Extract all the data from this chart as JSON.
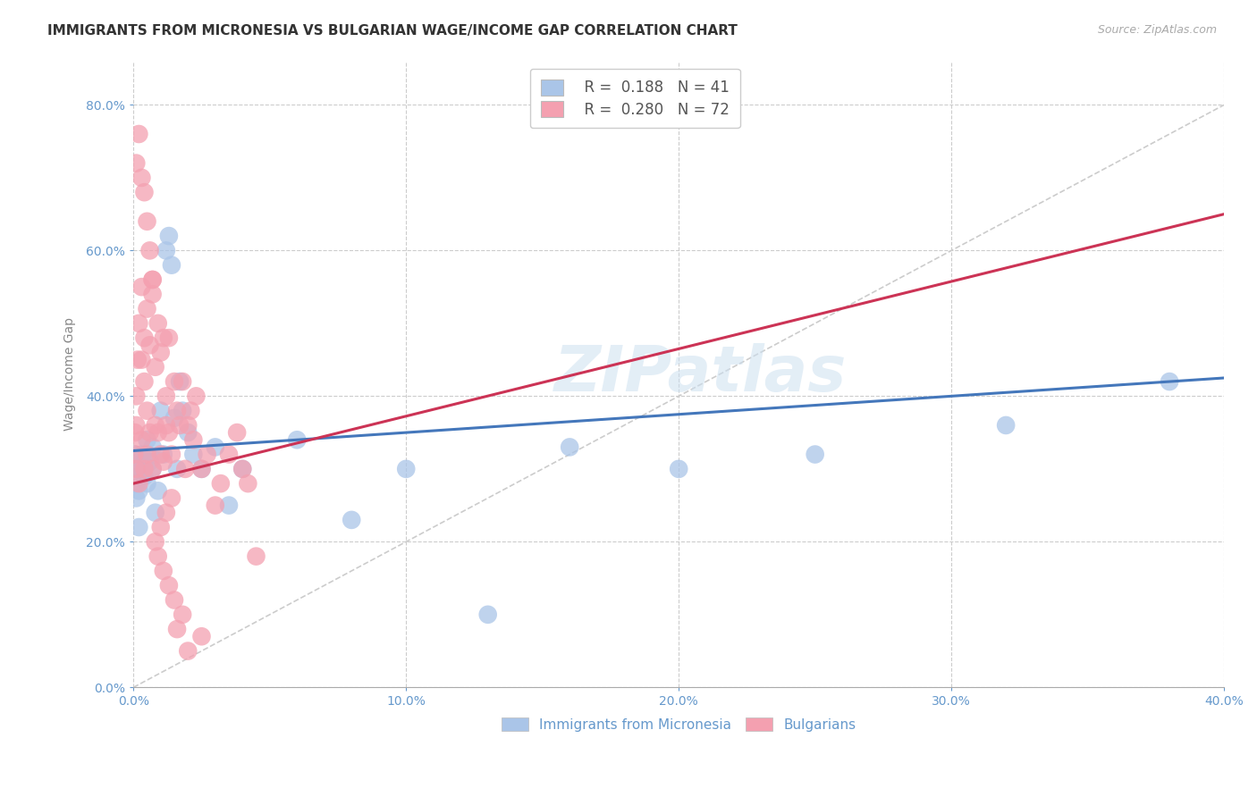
{
  "title": "IMMIGRANTS FROM MICRONESIA VS BULGARIAN WAGE/INCOME GAP CORRELATION CHART",
  "source": "Source: ZipAtlas.com",
  "ylabel": "Wage/Income Gap",
  "tick_color": "#6699cc",
  "xlim": [
    0.0,
    0.4
  ],
  "ylim": [
    0.0,
    0.86
  ],
  "xticks": [
    0.0,
    0.1,
    0.2,
    0.3,
    0.4
  ],
  "yticks": [
    0.0,
    0.2,
    0.4,
    0.6,
    0.8
  ],
  "xtick_labels": [
    "0.0%",
    "10.0%",
    "20.0%",
    "30.0%",
    "40.0%"
  ],
  "ytick_labels": [
    "0.0%",
    "20.0%",
    "40.0%",
    "60.0%",
    "80.0%"
  ],
  "grid_color": "#cccccc",
  "background_color": "#ffffff",
  "watermark": "ZIPatlas",
  "micronesia_color": "#aac5e8",
  "micronesia_trend_color": "#4477bb",
  "micronesia_label": "Immigrants from Micronesia",
  "micronesia_R": 0.188,
  "micronesia_N": 41,
  "micronesia_x": [
    0.0005,
    0.001,
    0.001,
    0.0015,
    0.002,
    0.002,
    0.003,
    0.003,
    0.004,
    0.004,
    0.005,
    0.005,
    0.006,
    0.007,
    0.007,
    0.008,
    0.009,
    0.01,
    0.011,
    0.012,
    0.013,
    0.014,
    0.015,
    0.016,
    0.017,
    0.018,
    0.02,
    0.022,
    0.025,
    0.03,
    0.035,
    0.04,
    0.06,
    0.08,
    0.1,
    0.13,
    0.16,
    0.2,
    0.25,
    0.32,
    0.38
  ],
  "micronesia_y": [
    0.32,
    0.28,
    0.26,
    0.3,
    0.22,
    0.27,
    0.3,
    0.32,
    0.29,
    0.31,
    0.28,
    0.34,
    0.31,
    0.3,
    0.33,
    0.24,
    0.27,
    0.38,
    0.32,
    0.6,
    0.62,
    0.58,
    0.37,
    0.3,
    0.42,
    0.38,
    0.35,
    0.32,
    0.3,
    0.33,
    0.25,
    0.3,
    0.34,
    0.23,
    0.3,
    0.1,
    0.33,
    0.3,
    0.32,
    0.36,
    0.42
  ],
  "bulgarians_color": "#f4a0b0",
  "bulgarians_trend_color": "#cc3355",
  "bulgarians_label": "Bulgarians",
  "bulgarians_R": 0.28,
  "bulgarians_N": 72,
  "bulgarians_x": [
    0.0003,
    0.0005,
    0.001,
    0.001,
    0.001,
    0.0015,
    0.002,
    0.002,
    0.003,
    0.003,
    0.003,
    0.004,
    0.004,
    0.004,
    0.005,
    0.005,
    0.005,
    0.006,
    0.006,
    0.007,
    0.007,
    0.007,
    0.008,
    0.008,
    0.009,
    0.009,
    0.01,
    0.01,
    0.011,
    0.011,
    0.012,
    0.012,
    0.013,
    0.013,
    0.014,
    0.015,
    0.016,
    0.017,
    0.018,
    0.019,
    0.02,
    0.021,
    0.022,
    0.023,
    0.025,
    0.027,
    0.03,
    0.032,
    0.035,
    0.038,
    0.04,
    0.042,
    0.045,
    0.001,
    0.002,
    0.003,
    0.004,
    0.005,
    0.006,
    0.007,
    0.008,
    0.009,
    0.01,
    0.011,
    0.012,
    0.013,
    0.014,
    0.015,
    0.016,
    0.018,
    0.02,
    0.025
  ],
  "bulgarians_y": [
    0.32,
    0.35,
    0.3,
    0.36,
    0.4,
    0.45,
    0.28,
    0.5,
    0.34,
    0.45,
    0.55,
    0.3,
    0.42,
    0.48,
    0.32,
    0.38,
    0.52,
    0.35,
    0.47,
    0.3,
    0.54,
    0.56,
    0.36,
    0.44,
    0.35,
    0.5,
    0.32,
    0.46,
    0.31,
    0.48,
    0.36,
    0.4,
    0.35,
    0.48,
    0.32,
    0.42,
    0.38,
    0.36,
    0.42,
    0.3,
    0.36,
    0.38,
    0.34,
    0.4,
    0.3,
    0.32,
    0.25,
    0.28,
    0.32,
    0.35,
    0.3,
    0.28,
    0.18,
    0.72,
    0.76,
    0.7,
    0.68,
    0.64,
    0.6,
    0.56,
    0.2,
    0.18,
    0.22,
    0.16,
    0.24,
    0.14,
    0.26,
    0.12,
    0.08,
    0.1,
    0.05,
    0.07
  ],
  "diagonal_color": "#cccccc",
  "title_fontsize": 11,
  "axis_label_fontsize": 10,
  "tick_fontsize": 10,
  "source_fontsize": 9
}
